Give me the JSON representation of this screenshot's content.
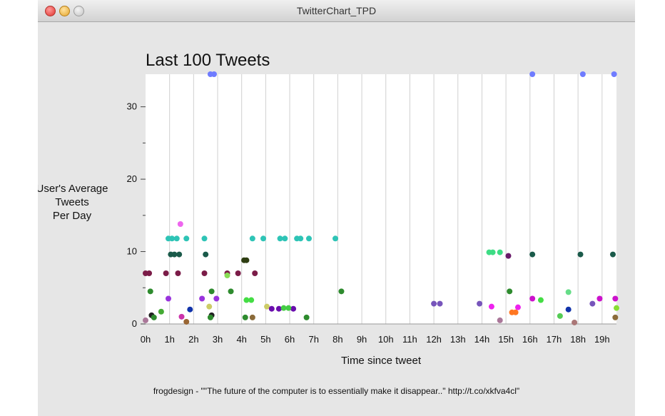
{
  "window": {
    "title": "TwitterChart_TPD",
    "buttons": [
      "close",
      "minimize",
      "zoom"
    ]
  },
  "chart_data": {
    "type": "scatter",
    "title": "Last 100 Tweets",
    "xlabel": "Time since tweet",
    "ylabel": [
      "User's Average",
      "Tweets",
      "Per Day"
    ],
    "xticks": [
      "0h",
      "1h",
      "2h",
      "3h",
      "4h",
      "5h",
      "6h",
      "7h",
      "8h",
      "9h",
      "10h",
      "11h",
      "12h",
      "13h",
      "14h",
      "15h",
      "16h",
      "17h",
      "18h",
      "19h"
    ],
    "yticks": [
      "0",
      "10",
      "20",
      "30"
    ],
    "xlim": [
      0,
      19.6
    ],
    "ylim": [
      0,
      34.5
    ],
    "grid": "vertical",
    "legend": "none",
    "points": [
      {
        "x": 2.7,
        "y": 34.5,
        "color": "#6f7cff"
      },
      {
        "x": 2.85,
        "y": 34.5,
        "color": "#6f7cff"
      },
      {
        "x": 16.1,
        "y": 34.5,
        "color": "#6f7cff"
      },
      {
        "x": 18.2,
        "y": 34.5,
        "color": "#6f7cff"
      },
      {
        "x": 19.5,
        "y": 34.5,
        "color": "#6f7cff"
      },
      {
        "x": 1.45,
        "y": 13.8,
        "color": "#ee66ee"
      },
      {
        "x": 0.95,
        "y": 11.8,
        "color": "#2ec4b6"
      },
      {
        "x": 1.1,
        "y": 11.8,
        "color": "#2ec4b6"
      },
      {
        "x": 1.3,
        "y": 11.8,
        "color": "#2ec4b6"
      },
      {
        "x": 1.7,
        "y": 11.8,
        "color": "#2ec4b6"
      },
      {
        "x": 2.45,
        "y": 11.8,
        "color": "#2ec4b6"
      },
      {
        "x": 4.45,
        "y": 11.8,
        "color": "#2ec4b6"
      },
      {
        "x": 4.9,
        "y": 11.8,
        "color": "#2ec4b6"
      },
      {
        "x": 5.6,
        "y": 11.8,
        "color": "#2ec4b6"
      },
      {
        "x": 5.8,
        "y": 11.8,
        "color": "#2ec4b6"
      },
      {
        "x": 6.3,
        "y": 11.8,
        "color": "#2ec4b6"
      },
      {
        "x": 6.45,
        "y": 11.8,
        "color": "#2ec4b6"
      },
      {
        "x": 6.8,
        "y": 11.8,
        "color": "#2ec4b6"
      },
      {
        "x": 7.9,
        "y": 11.8,
        "color": "#2ec4b6"
      },
      {
        "x": 1.05,
        "y": 9.6,
        "color": "#1a5a4a"
      },
      {
        "x": 1.2,
        "y": 9.6,
        "color": "#1a5a4a"
      },
      {
        "x": 1.4,
        "y": 9.6,
        "color": "#1a5a4a"
      },
      {
        "x": 2.5,
        "y": 9.6,
        "color": "#1a5a4a"
      },
      {
        "x": 16.1,
        "y": 9.6,
        "color": "#1a5a4a"
      },
      {
        "x": 18.1,
        "y": 9.6,
        "color": "#1a5a4a"
      },
      {
        "x": 19.45,
        "y": 9.6,
        "color": "#1a5a4a"
      },
      {
        "x": 14.3,
        "y": 9.9,
        "color": "#3ddc84"
      },
      {
        "x": 14.45,
        "y": 9.9,
        "color": "#3ddc84"
      },
      {
        "x": 14.75,
        "y": 9.9,
        "color": "#3ddc84"
      },
      {
        "x": 15.1,
        "y": 9.4,
        "color": "#6a1b6a"
      },
      {
        "x": 4.1,
        "y": 8.8,
        "color": "#2e3e12"
      },
      {
        "x": 4.2,
        "y": 8.8,
        "color": "#2e3e12"
      },
      {
        "x": 0.0,
        "y": 7.0,
        "color": "#7b1c48"
      },
      {
        "x": 0.15,
        "y": 7.0,
        "color": "#7b1c48"
      },
      {
        "x": 0.85,
        "y": 7.0,
        "color": "#7b1c48"
      },
      {
        "x": 1.35,
        "y": 7.0,
        "color": "#7b1c48"
      },
      {
        "x": 2.45,
        "y": 7.0,
        "color": "#7b1c48"
      },
      {
        "x": 3.4,
        "y": 7.0,
        "color": "#7b1c48"
      },
      {
        "x": 3.85,
        "y": 7.0,
        "color": "#7b1c48"
      },
      {
        "x": 4.55,
        "y": 7.0,
        "color": "#7b1c48"
      },
      {
        "x": 3.4,
        "y": 6.7,
        "color": "#88dd55"
      },
      {
        "x": 0.2,
        "y": 4.5,
        "color": "#2e8b2e"
      },
      {
        "x": 2.75,
        "y": 4.5,
        "color": "#2e8b2e"
      },
      {
        "x": 3.55,
        "y": 4.5,
        "color": "#2e8b2e"
      },
      {
        "x": 8.15,
        "y": 4.5,
        "color": "#2e8b2e"
      },
      {
        "x": 15.15,
        "y": 4.5,
        "color": "#2e8b2e"
      },
      {
        "x": 17.6,
        "y": 4.4,
        "color": "#66dd88"
      },
      {
        "x": 0.95,
        "y": 3.5,
        "color": "#9933dd"
      },
      {
        "x": 2.35,
        "y": 3.5,
        "color": "#9933dd"
      },
      {
        "x": 2.95,
        "y": 3.5,
        "color": "#9933dd"
      },
      {
        "x": 16.1,
        "y": 3.5,
        "color": "#cc11cc"
      },
      {
        "x": 18.9,
        "y": 3.5,
        "color": "#cc11cc"
      },
      {
        "x": 19.55,
        "y": 3.5,
        "color": "#cc11cc"
      },
      {
        "x": 4.2,
        "y": 3.3,
        "color": "#44dd44"
      },
      {
        "x": 4.4,
        "y": 3.3,
        "color": "#44dd44"
      },
      {
        "x": 16.45,
        "y": 3.3,
        "color": "#44dd44"
      },
      {
        "x": 12.0,
        "y": 2.8,
        "color": "#7755bb"
      },
      {
        "x": 12.25,
        "y": 2.8,
        "color": "#7755bb"
      },
      {
        "x": 13.9,
        "y": 2.8,
        "color": "#7755bb"
      },
      {
        "x": 18.6,
        "y": 2.8,
        "color": "#7755bb"
      },
      {
        "x": 5.05,
        "y": 2.4,
        "color": "#cccc66"
      },
      {
        "x": 2.65,
        "y": 2.4,
        "color": "#cccc66"
      },
      {
        "x": 5.25,
        "y": 2.1,
        "color": "#6a0dad"
      },
      {
        "x": 5.55,
        "y": 2.1,
        "color": "#6a0dad"
      },
      {
        "x": 6.15,
        "y": 2.1,
        "color": "#6a0dad"
      },
      {
        "x": 5.75,
        "y": 2.2,
        "color": "#44cc44"
      },
      {
        "x": 5.95,
        "y": 2.2,
        "color": "#44cc44"
      },
      {
        "x": 14.4,
        "y": 2.4,
        "color": "#ee22ee"
      },
      {
        "x": 15.5,
        "y": 2.3,
        "color": "#ee22ee"
      },
      {
        "x": 1.85,
        "y": 2.0,
        "color": "#1133aa"
      },
      {
        "x": 17.6,
        "y": 2.0,
        "color": "#1133aa"
      },
      {
        "x": 19.6,
        "y": 2.2,
        "color": "#88dd33"
      },
      {
        "x": 0.65,
        "y": 1.7,
        "color": "#44aa33"
      },
      {
        "x": 15.25,
        "y": 1.6,
        "color": "#ff7722"
      },
      {
        "x": 15.4,
        "y": 1.6,
        "color": "#ff7722"
      },
      {
        "x": 0.25,
        "y": 1.2,
        "color": "#222222"
      },
      {
        "x": 2.75,
        "y": 1.2,
        "color": "#222222"
      },
      {
        "x": 0.35,
        "y": 0.9,
        "color": "#2e8b2e"
      },
      {
        "x": 2.7,
        "y": 0.9,
        "color": "#2e8b2e"
      },
      {
        "x": 4.15,
        "y": 0.9,
        "color": "#2e8b2e"
      },
      {
        "x": 6.7,
        "y": 0.9,
        "color": "#2e8b2e"
      },
      {
        "x": 1.5,
        "y": 1.0,
        "color": "#cc33aa"
      },
      {
        "x": 4.45,
        "y": 0.9,
        "color": "#8b6b3a"
      },
      {
        "x": 19.55,
        "y": 0.9,
        "color": "#8b6b3a"
      },
      {
        "x": 17.25,
        "y": 1.1,
        "color": "#55cc55"
      },
      {
        "x": 0.0,
        "y": 0.5,
        "color": "#aa7799"
      },
      {
        "x": 14.75,
        "y": 0.5,
        "color": "#aa7799"
      },
      {
        "x": 1.7,
        "y": 0.3,
        "color": "#996633"
      },
      {
        "x": 17.85,
        "y": 0.2,
        "color": "#aa7777"
      }
    ]
  },
  "status": {
    "text": "frogdesign - \"\"The future of the computer is to essentially make it disappear..\" http://t.co/xkfva4cl\""
  }
}
